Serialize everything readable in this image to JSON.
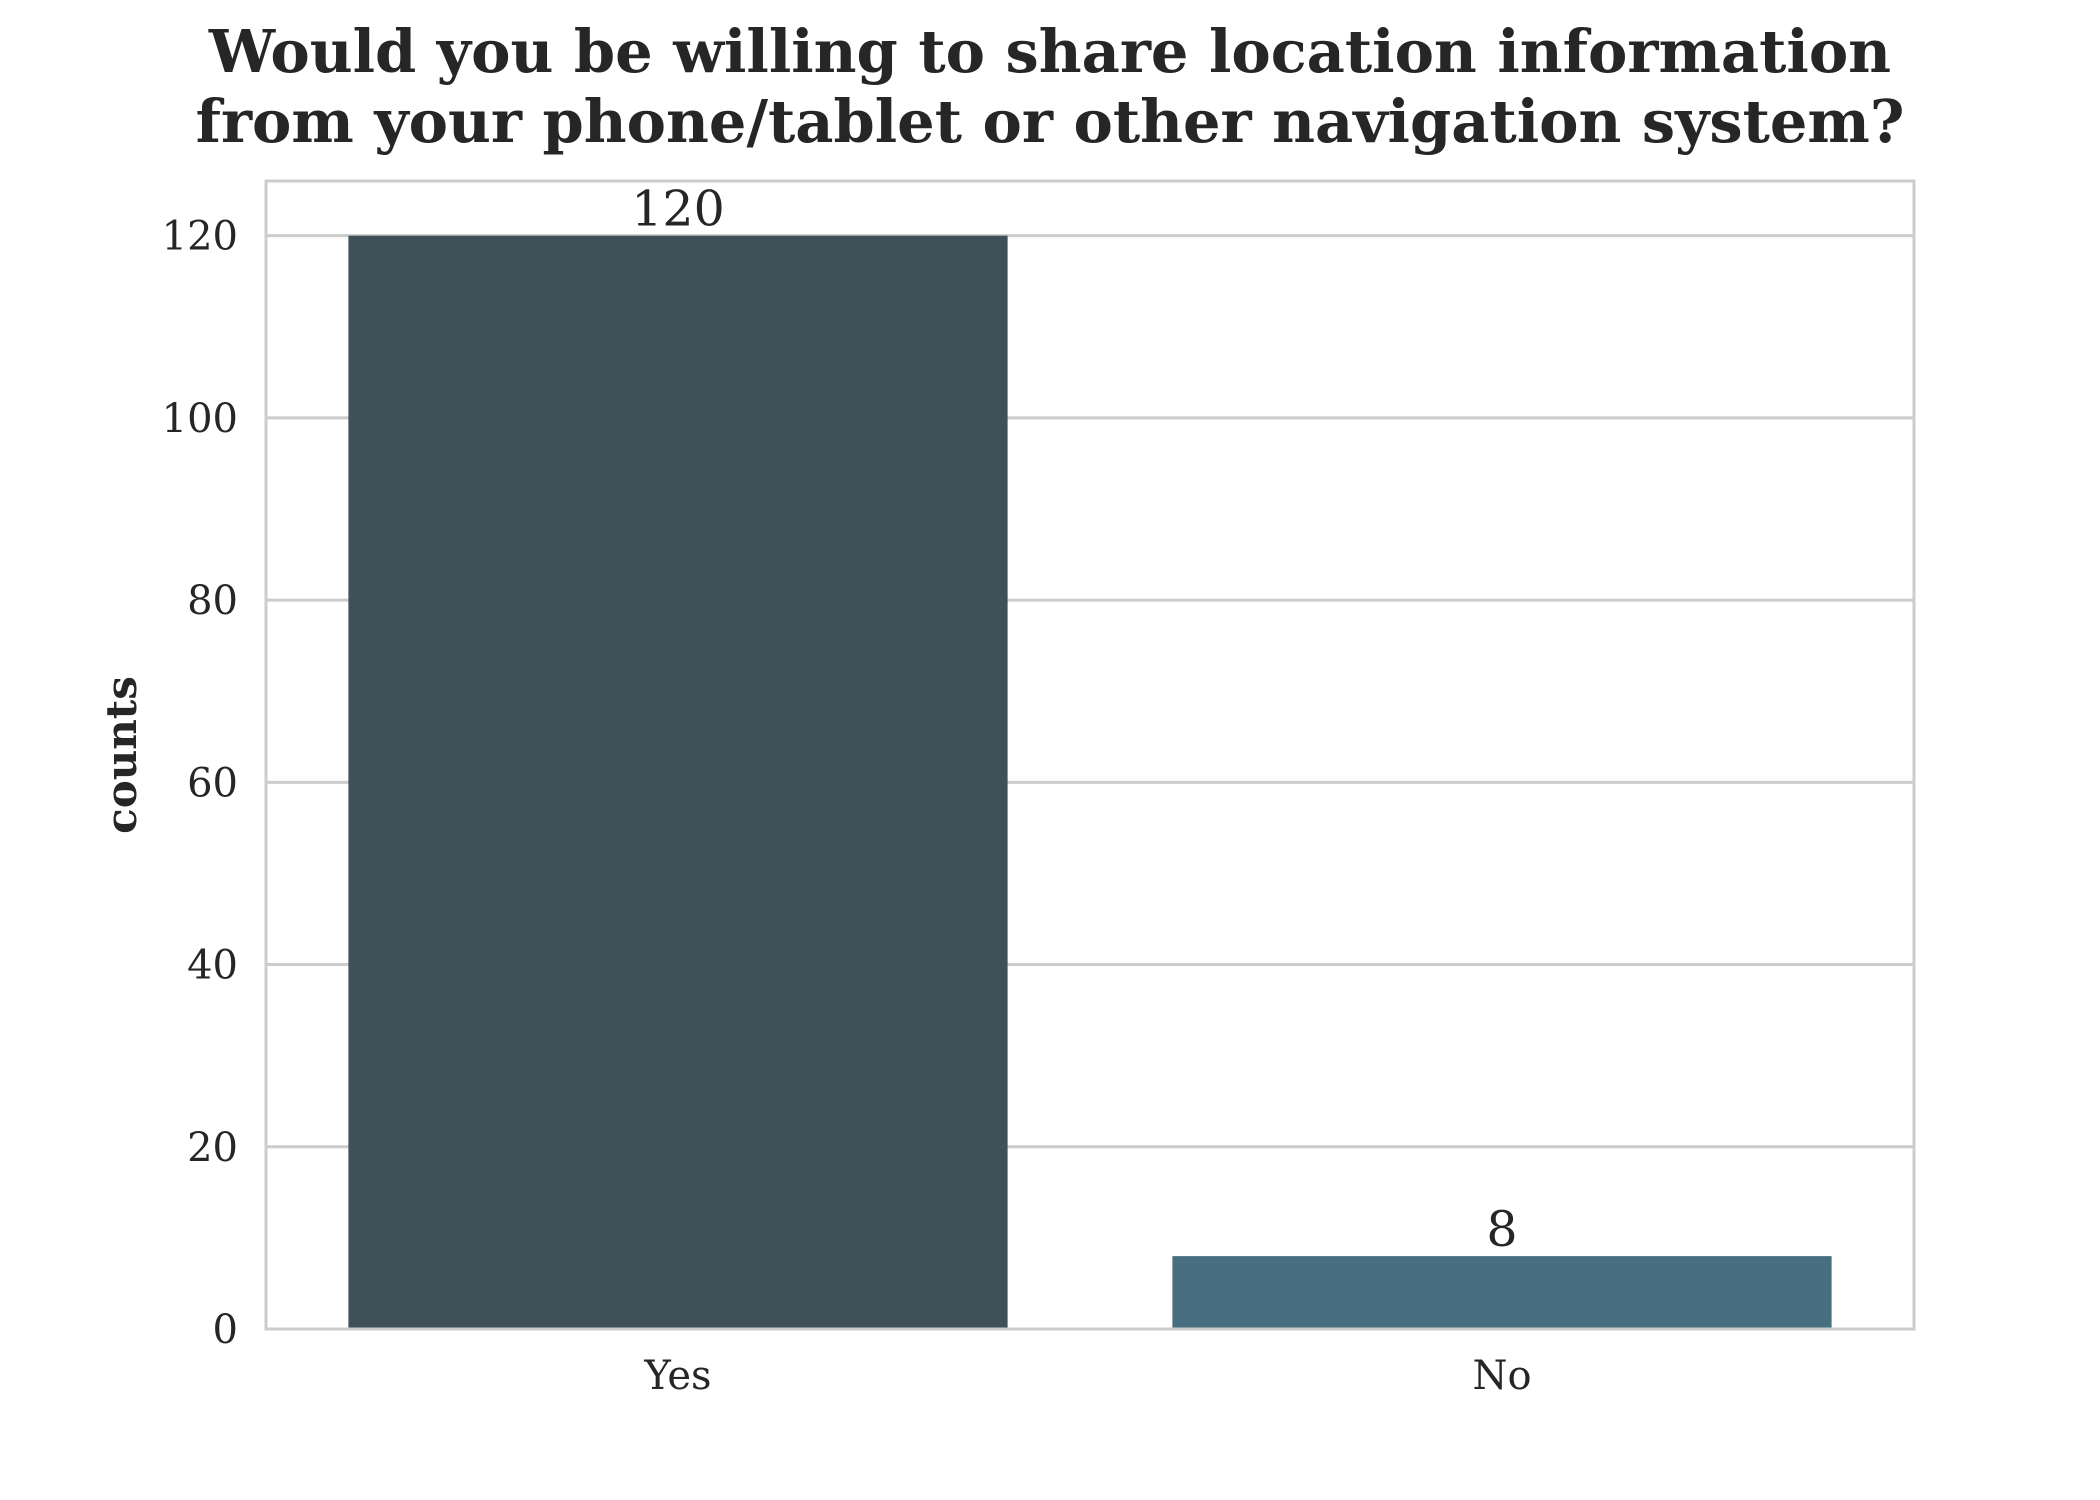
{
  "chart_data": {
    "type": "bar",
    "title_lines": [
      "Would you be willing to share location information",
      "from your phone/tablet or other navigation system?"
    ],
    "xlabel": "",
    "ylabel": "counts",
    "categories": [
      "Yes",
      "No"
    ],
    "values": [
      120,
      8
    ],
    "value_labels": [
      "120",
      "8"
    ],
    "ylim": [
      0,
      126
    ],
    "yticks": [
      0,
      20,
      40,
      60,
      80,
      100,
      120
    ],
    "ytick_labels": [
      "0",
      "20",
      "40",
      "60",
      "80",
      "100",
      "120"
    ],
    "bar_colors": [
      "#3e5159",
      "#486f80"
    ],
    "grid": true,
    "grid_axis": "y",
    "legend": "none"
  }
}
